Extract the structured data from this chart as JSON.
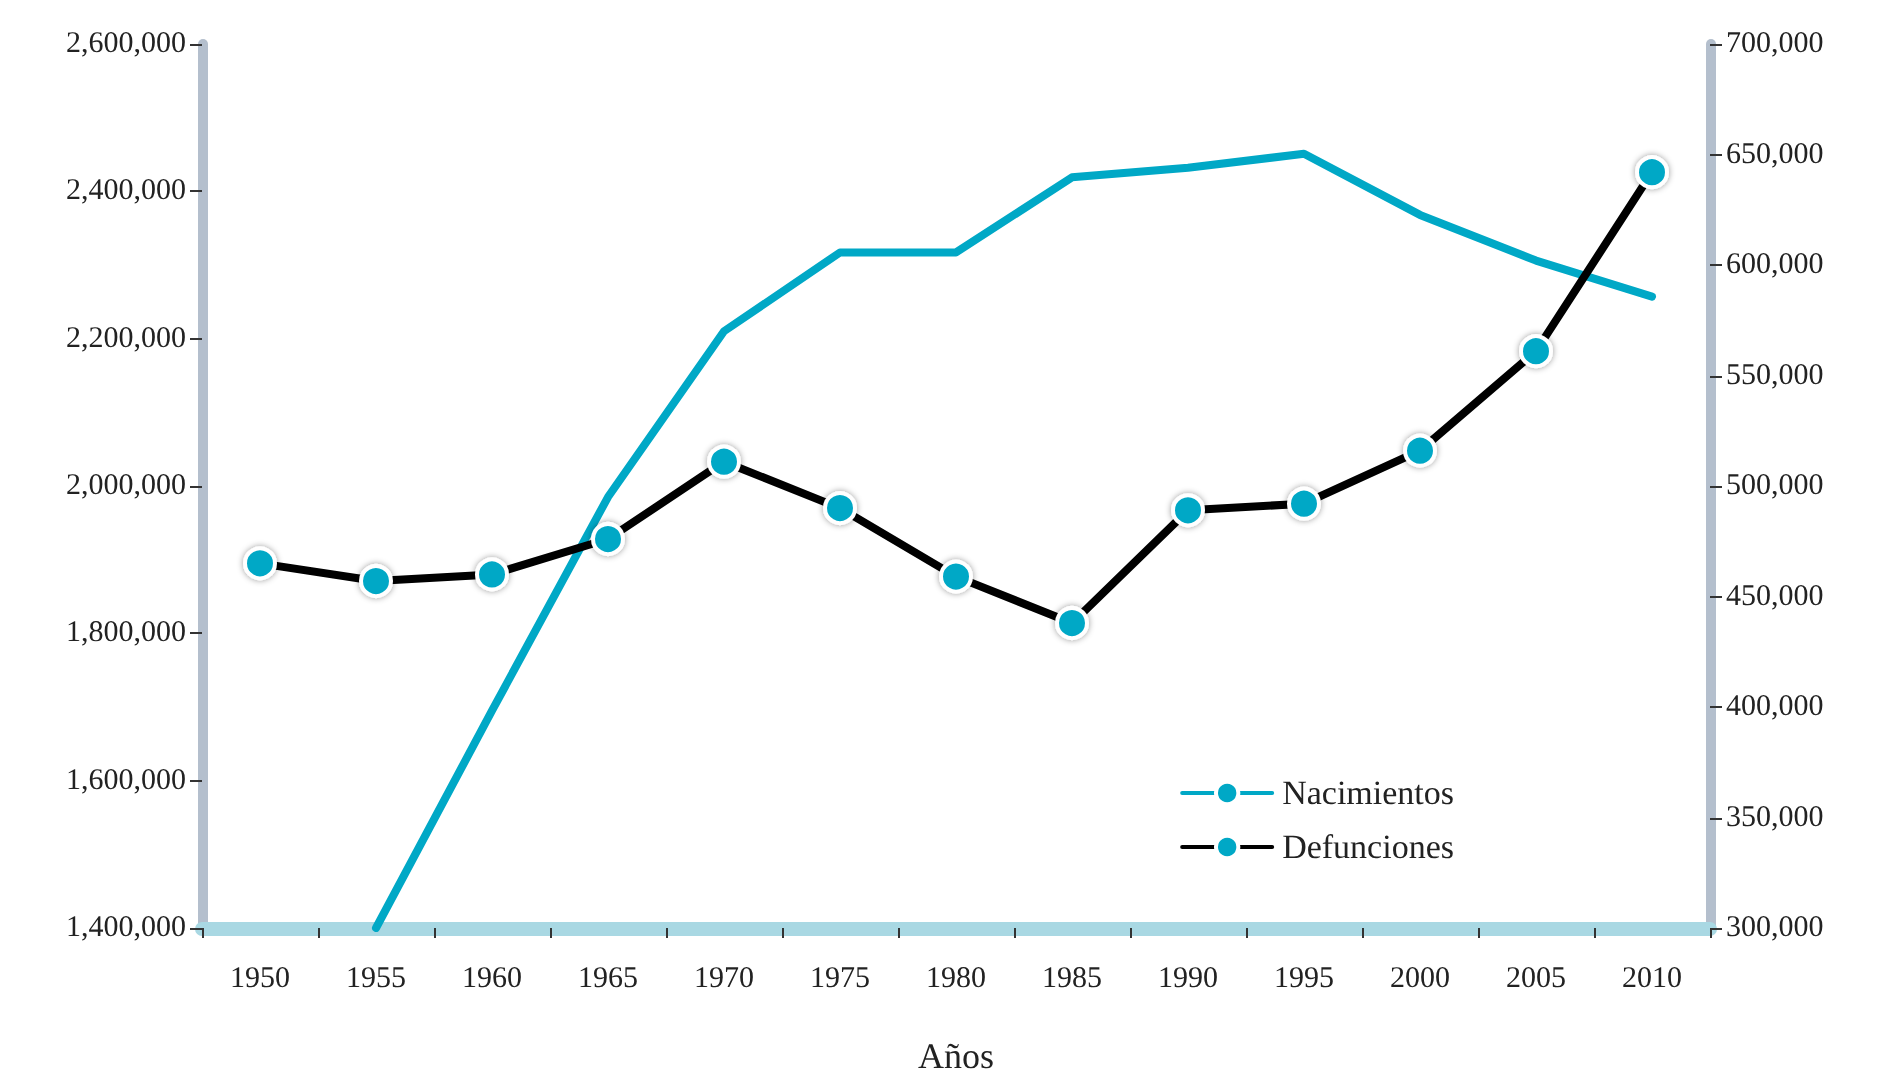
{
  "chart_data": {
    "type": "line",
    "xlabel": "Años",
    "categories": [
      "1950",
      "1955",
      "1960",
      "1965",
      "1970",
      "1975",
      "1980",
      "1985",
      "1990",
      "1995",
      "2000",
      "2005",
      "2010"
    ],
    "series": [
      {
        "name": "Nacimientos",
        "color": "#00a8c6",
        "marker": "none",
        "values": [
          null,
          1400000,
          1695000,
          1985000,
          2210000,
          2317000,
          2317000,
          2419000,
          2432000,
          2451000,
          2368000,
          2306000,
          2257000
        ]
      },
      {
        "name": "Defunciones",
        "color": "#000000",
        "colors": [
          "#00a8c6",
          "#00a8c6",
          "#00a8c6",
          "#00a8c6",
          "#00a8c6",
          "#00a8c6",
          "#00a8c6",
          "#00a8c6",
          "#00a8c6",
          "#00a8c6",
          "#00a8c6",
          "#00a8c6",
          "#00a8c6"
        ],
        "marker": "circle",
        "axis": "y2",
        "values": [
          465000,
          457000,
          460000,
          476000,
          511000,
          490000,
          459000,
          438000,
          489000,
          492000,
          516000,
          561000,
          642000
        ]
      }
    ],
    "ylim": [
      1400000,
      2600000
    ],
    "yticks": [
      {
        "value": 1400000,
        "label": "1,400,000"
      },
      {
        "value": 1600000,
        "label": "1,600,000"
      },
      {
        "value": 1800000,
        "label": "1,800,000"
      },
      {
        "value": 2000000,
        "label": "2,000,000"
      },
      {
        "value": 2200000,
        "label": "2,200,000"
      },
      {
        "value": 2400000,
        "label": "2,400,000"
      },
      {
        "value": 2600000,
        "label": "2,600,000"
      }
    ],
    "y2lim": [
      300000,
      700000
    ],
    "y2ticks": [
      {
        "value": 300000,
        "label": "300,000"
      },
      {
        "value": 350000,
        "label": "350,000"
      },
      {
        "value": 400000,
        "label": "400,000"
      },
      {
        "value": 450000,
        "label": "450,000"
      },
      {
        "value": 500000,
        "label": "500,000"
      },
      {
        "value": 550000,
        "label": "550,000"
      },
      {
        "value": 600000,
        "label": "600,000"
      },
      {
        "value": 650000,
        "label": "650,000"
      },
      {
        "value": 700000,
        "label": "700,000"
      }
    ],
    "grid": false,
    "legend": "bottom right",
    "line_style": "solid"
  }
}
